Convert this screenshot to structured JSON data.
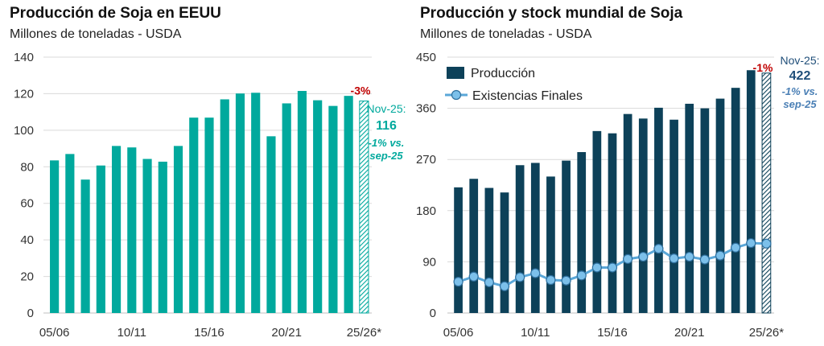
{
  "chart_data": [
    {
      "type": "bar",
      "title": "Producción de Soja en EEUU",
      "subtitle": "Millones de toneladas - USDA",
      "x_tick_labels": [
        "05/06",
        "10/11",
        "15/16",
        "20/21",
        "25/26*"
      ],
      "categories": [
        "05/06",
        "06/07",
        "07/08",
        "08/09",
        "09/10",
        "10/11",
        "11/12",
        "12/13",
        "13/14",
        "14/15",
        "15/16",
        "16/17",
        "17/18",
        "18/19",
        "19/20",
        "20/21",
        "21/22",
        "22/23",
        "23/24",
        "24/25",
        "25/26*"
      ],
      "values": [
        83.5,
        87,
        73,
        80.7,
        91.4,
        90.6,
        84.3,
        82.8,
        91.4,
        106.9,
        106.9,
        116.9,
        120.1,
        120.5,
        96.7,
        114.7,
        121.5,
        116.4,
        113.3,
        118.8,
        116
      ],
      "last_bar_hatched": true,
      "ylim": [
        0,
        140
      ],
      "yticks": [
        0,
        20,
        40,
        60,
        80,
        100,
        120,
        140
      ],
      "grid": true,
      "bar_color": "#00a99d",
      "annotations": {
        "change": "-3%",
        "label": "Nov-25:",
        "value": "116",
        "note_line1": "-1% vs.",
        "note_line2": "sep-25"
      }
    },
    {
      "type": "bar+line",
      "title": "Producción y stock mundial de Soja",
      "subtitle": "Millones de toneladas - USDA",
      "x_tick_labels": [
        "05/06",
        "10/11",
        "15/16",
        "20/21",
        "25/26*"
      ],
      "categories": [
        "05/06",
        "06/07",
        "07/08",
        "08/09",
        "09/10",
        "10/11",
        "11/12",
        "12/13",
        "13/14",
        "14/15",
        "15/16",
        "16/17",
        "17/18",
        "18/19",
        "19/20",
        "20/21",
        "21/22",
        "22/23",
        "23/24",
        "24/25",
        "25/26*"
      ],
      "series": [
        {
          "name": "Producción",
          "type": "bar",
          "color": "#0d4159",
          "values": [
            221,
            236,
            220,
            212,
            260,
            264,
            240,
            268,
            283,
            320,
            316,
            350,
            342,
            361,
            340,
            368,
            360,
            377,
            396,
            427,
            422
          ]
        },
        {
          "name": "Existencias  Finales",
          "type": "line",
          "color": "#5aa7d8",
          "values": [
            55,
            64,
            54,
            47,
            63,
            70,
            58,
            57,
            66,
            80,
            80,
            95,
            99,
            113,
            96,
            99,
            94,
            101,
            115,
            123,
            122
          ]
        }
      ],
      "last_bar_hatched": true,
      "ylim": [
        0,
        450
      ],
      "yticks": [
        0,
        90,
        180,
        270,
        360,
        450
      ],
      "grid": true,
      "legend_position": "top-left",
      "annotations": {
        "change": "-1%",
        "label": "Nov-25:",
        "value": "422",
        "note_line1": "-1% vs.",
        "note_line2": "sep-25"
      }
    }
  ]
}
